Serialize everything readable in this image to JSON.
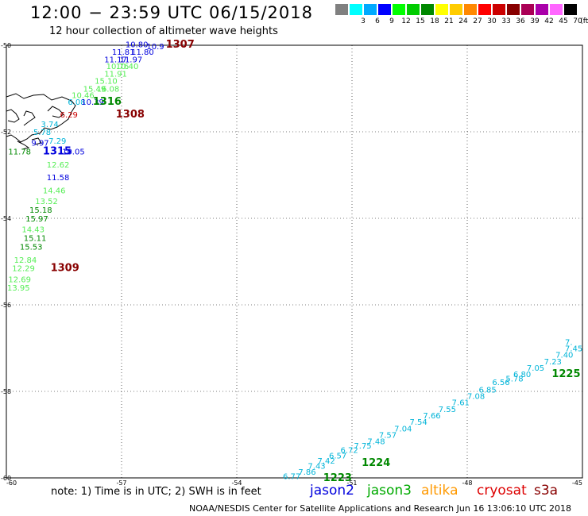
{
  "header": {
    "title": "12:00 − 23:59 UTC 06/15/2018",
    "subtitle": "12 hour collection of altimeter wave heights"
  },
  "legend": {
    "unit": "(ft)",
    "bins": [
      {
        "label": "",
        "color": "#808080"
      },
      {
        "label": "3",
        "color": "#00ffff"
      },
      {
        "label": "6",
        "color": "#00aaff"
      },
      {
        "label": "9",
        "color": "#0000ff"
      },
      {
        "label": "12",
        "color": "#00ff00"
      },
      {
        "label": "15",
        "color": "#00cc00"
      },
      {
        "label": "18",
        "color": "#008800"
      },
      {
        "label": "21",
        "color": "#ffff00"
      },
      {
        "label": "24",
        "color": "#ffcc00"
      },
      {
        "label": "27",
        "color": "#ff8800"
      },
      {
        "label": "30",
        "color": "#ff0000"
      },
      {
        "label": "33",
        "color": "#cc0000"
      },
      {
        "label": "36",
        "color": "#880000"
      },
      {
        "label": "39",
        "color": "#aa0055"
      },
      {
        "label": "42",
        "color": "#aa00aa"
      },
      {
        "label": "45",
        "color": "#ff66ff"
      },
      {
        "label": "70",
        "color": "#000000"
      }
    ]
  },
  "map": {
    "lon_ticks": [
      "-60",
      "-57",
      "-54",
      "-51",
      "-48",
      "-45"
    ],
    "lat_ticks": [
      "-50",
      "-52",
      "-54",
      "-56",
      "-58",
      "-60"
    ],
    "lon_range": [
      -60,
      -45
    ],
    "lat_range": [
      -60,
      -50
    ],
    "colors": {
      "cyan": "#00b4d8",
      "blue": "#0000dd",
      "green": "#22c822",
      "lightgreen": "#55ee55",
      "darkgreen": "#008800",
      "red": "#cc0000",
      "darkred": "#880000"
    },
    "labels": [
      {
        "t": "10.80",
        "lon": -56.9,
        "lat": -49.97,
        "c": "blue"
      },
      {
        "t": "10.9",
        "lon": -56.35,
        "lat": -50.02,
        "c": "blue"
      },
      {
        "t": "1307",
        "lon": -55.85,
        "lat": -49.98,
        "c": "darkred",
        "bold": true
      },
      {
        "t": "11.81",
        "lon": -57.25,
        "lat": -50.15,
        "c": "blue"
      },
      {
        "t": "11.80",
        "lon": -56.75,
        "lat": -50.15,
        "c": "blue"
      },
      {
        "t": "11.17",
        "lon": -57.45,
        "lat": -50.32,
        "c": "blue"
      },
      {
        "t": "11.97",
        "lon": -57.05,
        "lat": -50.32,
        "c": "blue"
      },
      {
        "t": "10.76",
        "lon": -57.4,
        "lat": -50.48,
        "c": "lightgreen"
      },
      {
        "t": "10.40",
        "lon": -57.15,
        "lat": -50.48,
        "c": "lightgreen"
      },
      {
        "t": "11.91",
        "lon": -57.45,
        "lat": -50.65,
        "c": "lightgreen"
      },
      {
        "t": "15.10",
        "lon": -57.7,
        "lat": -50.82,
        "c": "lightgreen"
      },
      {
        "t": "15.49",
        "lon": -58.0,
        "lat": -51.0,
        "c": "lightgreen"
      },
      {
        "t": "16.08",
        "lon": -57.65,
        "lat": -51.0,
        "c": "lightgreen"
      },
      {
        "t": "10.46",
        "lon": -58.3,
        "lat": -51.15,
        "c": "lightgreen"
      },
      {
        "t": "6.08",
        "lon": -58.4,
        "lat": -51.3,
        "c": "cyan"
      },
      {
        "t": "10.39",
        "lon": -58.05,
        "lat": -51.3,
        "c": "blue"
      },
      {
        "t": "1316",
        "lon": -57.75,
        "lat": -51.3,
        "c": "darkgreen",
        "bold": true
      },
      {
        "t": "6.29",
        "lon": -58.6,
        "lat": -51.6,
        "c": "red"
      },
      {
        "t": "1308",
        "lon": -57.15,
        "lat": -51.6,
        "c": "darkred",
        "bold": true
      },
      {
        "t": "3.74",
        "lon": -59.1,
        "lat": -51.82,
        "c": "cyan"
      },
      {
        "t": "5.78",
        "lon": -59.3,
        "lat": -52.0,
        "c": "cyan"
      },
      {
        "t": "7.29",
        "lon": -58.9,
        "lat": -52.2,
        "c": "cyan"
      },
      {
        "t": "9.97",
        "lon": -59.35,
        "lat": -52.25,
        "c": "blue"
      },
      {
        "t": "11.78",
        "lon": -59.95,
        "lat": -52.45,
        "c": "darkgreen"
      },
      {
        "t": "1315",
        "lon": -59.05,
        "lat": -52.45,
        "c": "blue",
        "bold": true
      },
      {
        "t": "10.05",
        "lon": -58.55,
        "lat": -52.45,
        "c": "blue"
      },
      {
        "t": "12.62",
        "lon": -58.95,
        "lat": -52.75,
        "c": "lightgreen"
      },
      {
        "t": "11.58",
        "lon": -58.95,
        "lat": -53.05,
        "c": "blue"
      },
      {
        "t": "14.46",
        "lon": -59.05,
        "lat": -53.35,
        "c": "lightgreen"
      },
      {
        "t": "13.52",
        "lon": -59.25,
        "lat": -53.6,
        "c": "lightgreen"
      },
      {
        "t": "15.18",
        "lon": -59.4,
        "lat": -53.8,
        "c": "darkgreen"
      },
      {
        "t": "15.97",
        "lon": -59.5,
        "lat": -54.0,
        "c": "darkgreen"
      },
      {
        "t": "14.43",
        "lon": -59.6,
        "lat": -54.25,
        "c": "lightgreen"
      },
      {
        "t": "15.11",
        "lon": -59.55,
        "lat": -54.45,
        "c": "darkgreen"
      },
      {
        "t": "15.53",
        "lon": -59.65,
        "lat": -54.65,
        "c": "darkgreen"
      },
      {
        "t": "12.84",
        "lon": -59.8,
        "lat": -54.95,
        "c": "lightgreen"
      },
      {
        "t": "12.29",
        "lon": -59.85,
        "lat": -55.15,
        "c": "lightgreen"
      },
      {
        "t": "1309",
        "lon": -58.85,
        "lat": -55.15,
        "c": "darkred",
        "bold": true
      },
      {
        "t": "12.69",
        "lon": -59.95,
        "lat": -55.4,
        "c": "lightgreen"
      },
      {
        "t": "13.95",
        "lon": -60.05,
        "lat": -55.6,
        "c": "lightgreen"
      },
      {
        "t": "7.",
        "lon": -45.2,
        "lat": -56.85,
        "c": "cyan"
      },
      {
        "t": "7.45",
        "lon": -45.15,
        "lat": -57.0,
        "c": "cyan"
      },
      {
        "t": "7.40",
        "lon": -45.7,
        "lat": -57.15,
        "c": "cyan"
      },
      {
        "t": "7.23",
        "lon": -46.0,
        "lat": -57.3,
        "c": "cyan"
      },
      {
        "t": "7.05",
        "lon": -46.45,
        "lat": -57.45,
        "c": "cyan"
      },
      {
        "t": "6.80",
        "lon": -46.8,
        "lat": -57.6,
        "c": "cyan"
      },
      {
        "t": "1225",
        "lon": -45.8,
        "lat": -57.6,
        "c": "darkgreen",
        "bold": true
      },
      {
        "t": "6.56",
        "lon": -47.35,
        "lat": -57.78,
        "c": "cyan"
      },
      {
        "t": "5.78",
        "lon": -47.0,
        "lat": -57.7,
        "c": "cyan"
      },
      {
        "t": "6.85",
        "lon": -47.7,
        "lat": -57.95,
        "c": "cyan"
      },
      {
        "t": "7.08",
        "lon": -48.0,
        "lat": -58.1,
        "c": "cyan"
      },
      {
        "t": "7.61",
        "lon": -48.4,
        "lat": -58.25,
        "c": "cyan"
      },
      {
        "t": "7.55",
        "lon": -48.75,
        "lat": -58.4,
        "c": "cyan"
      },
      {
        "t": "7.66",
        "lon": -49.15,
        "lat": -58.55,
        "c": "cyan"
      },
      {
        "t": "7.54",
        "lon": -49.5,
        "lat": -58.7,
        "c": "cyan"
      },
      {
        "t": "7.04",
        "lon": -49.9,
        "lat": -58.85,
        "c": "cyan"
      },
      {
        "t": "7.57",
        "lon": -50.3,
        "lat": -59.0,
        "c": "cyan"
      },
      {
        "t": "7.48",
        "lon": -50.6,
        "lat": -59.15,
        "c": "cyan"
      },
      {
        "t": "7.75",
        "lon": -50.95,
        "lat": -59.25,
        "c": "cyan"
      },
      {
        "t": "6.72",
        "lon": -51.3,
        "lat": -59.35,
        "c": "cyan"
      },
      {
        "t": "6.57",
        "lon": -51.6,
        "lat": -59.48,
        "c": "cyan"
      },
      {
        "t": "7.42",
        "lon": -51.9,
        "lat": -59.6,
        "c": "cyan"
      },
      {
        "t": "1224",
        "lon": -50.75,
        "lat": -59.65,
        "c": "darkgreen",
        "bold": true
      },
      {
        "t": "7.43",
        "lon": -52.15,
        "lat": -59.72,
        "c": "cyan"
      },
      {
        "t": "7.86",
        "lon": -52.4,
        "lat": -59.85,
        "c": "cyan"
      },
      {
        "t": "6.77",
        "lon": -52.8,
        "lat": -59.95,
        "c": "cyan"
      },
      {
        "t": "1223",
        "lon": -51.75,
        "lat": -60.0,
        "c": "darkgreen",
        "bold": true
      }
    ]
  },
  "note": "note: 1) Time is in UTC; 2) SWH is in feet",
  "satellites": [
    {
      "name": "jason2",
      "color": "#0000dd"
    },
    {
      "name": "jason3",
      "color": "#00aa00"
    },
    {
      "name": "altika",
      "color": "#ff9900"
    },
    {
      "name": "cryosat",
      "color": "#dd0000"
    },
    {
      "name": "s3a",
      "color": "#880000"
    }
  ],
  "footer": "NOAA/NESDIS Center for Satellite Applications and Research   Jun 16 13:06:10 UTC 2018"
}
